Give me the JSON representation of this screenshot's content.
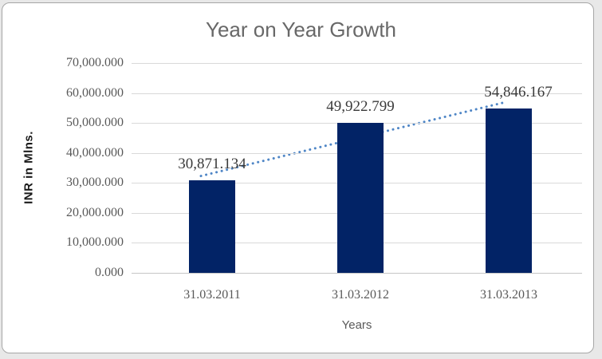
{
  "frame": {
    "background": "#ffffff",
    "border_color": "#a6a6a6",
    "outer_background": "#e8e8e8"
  },
  "chart_data": {
    "type": "bar",
    "title": "Year on Year Growth",
    "xlabel": "Years",
    "ylabel": "INR in Mlns.",
    "categories": [
      "31.03.2011",
      "31.03.2012",
      "31.03.2013"
    ],
    "values": [
      30871.134,
      49922.799,
      54846.167
    ],
    "value_labels": [
      "30,871.134",
      "49,922.799",
      "54,846.167"
    ],
    "yticks": [
      "70,000.000",
      "60,000.000",
      "50,000.000",
      "40,000.000",
      "30,000.000",
      "20,000.000",
      "10,000.000",
      "0.000"
    ],
    "ylim": [
      0,
      70000
    ],
    "ytick_step": 10000,
    "grid": true,
    "legend": "none",
    "trendline": {
      "type": "linear",
      "style": "dotted"
    },
    "colors": {
      "bar": "#022366",
      "trendline": "#4f86c6",
      "gridline": "#d9d9d9",
      "axis_line": "#c6c6c6",
      "title": "#686868",
      "tick_label": "#595959",
      "data_label": "#3a3a3a",
      "x_axis_title": "#595959",
      "y_axis_title": "#1a1a1a"
    }
  }
}
